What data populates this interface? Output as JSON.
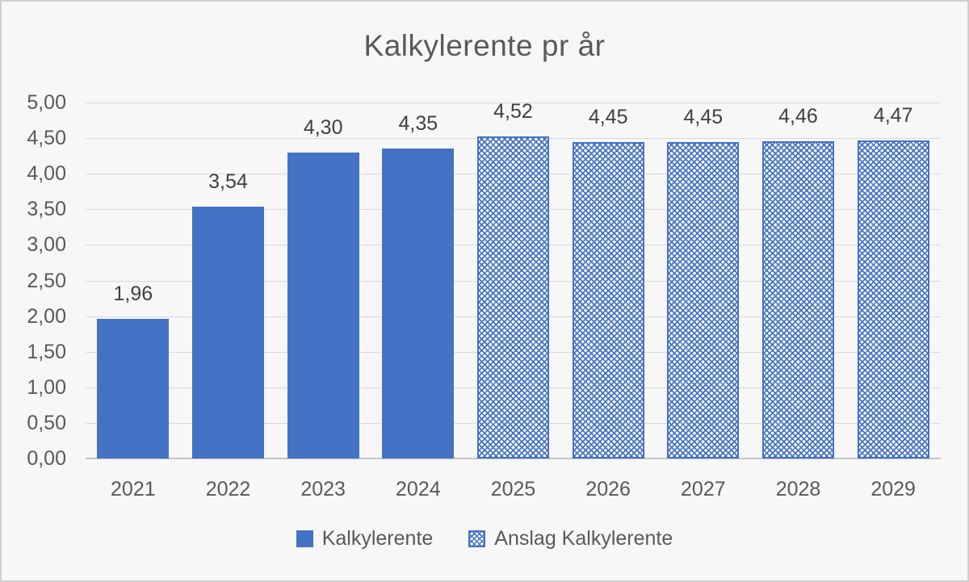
{
  "chart_data": {
    "type": "bar",
    "title": "Kalkylerente pr år",
    "categories": [
      "2021",
      "2022",
      "2023",
      "2024",
      "2025",
      "2026",
      "2027",
      "2028",
      "2029"
    ],
    "series": [
      {
        "name": "Kalkylerente",
        "style": "solid",
        "values": [
          1.96,
          3.54,
          4.3,
          4.35,
          null,
          null,
          null,
          null,
          null
        ]
      },
      {
        "name": "Anslag Kalkylerente",
        "style": "pattern",
        "values": [
          null,
          null,
          null,
          null,
          4.52,
          4.45,
          4.45,
          4.46,
          4.47
        ]
      }
    ],
    "data_labels": [
      "1,96",
      "3,54",
      "4,30",
      "4,35",
      "4,52",
      "4,45",
      "4,45",
      "4,46",
      "4,47"
    ],
    "y_ticks": [
      "0,00",
      "0,50",
      "1,00",
      "1,50",
      "2,00",
      "2,50",
      "3,00",
      "3,50",
      "4,00",
      "4,50",
      "5,00"
    ],
    "ylim": [
      0,
      5
    ],
    "xlabel": "",
    "ylabel": "",
    "grid": true,
    "legend_position": "bottom"
  },
  "legend": {
    "items": [
      {
        "label": "Kalkylerente",
        "style": "solid"
      },
      {
        "label": "Anslag Kalkylerente",
        "style": "pattern"
      }
    ]
  },
  "colors": {
    "bar_blue": "#4472C4",
    "gridline": "#D9D9D9",
    "axis_text": "#595959",
    "data_label_text": "#404040",
    "background": "#F7F7F7",
    "frame_border": "#CFCFCF"
  }
}
